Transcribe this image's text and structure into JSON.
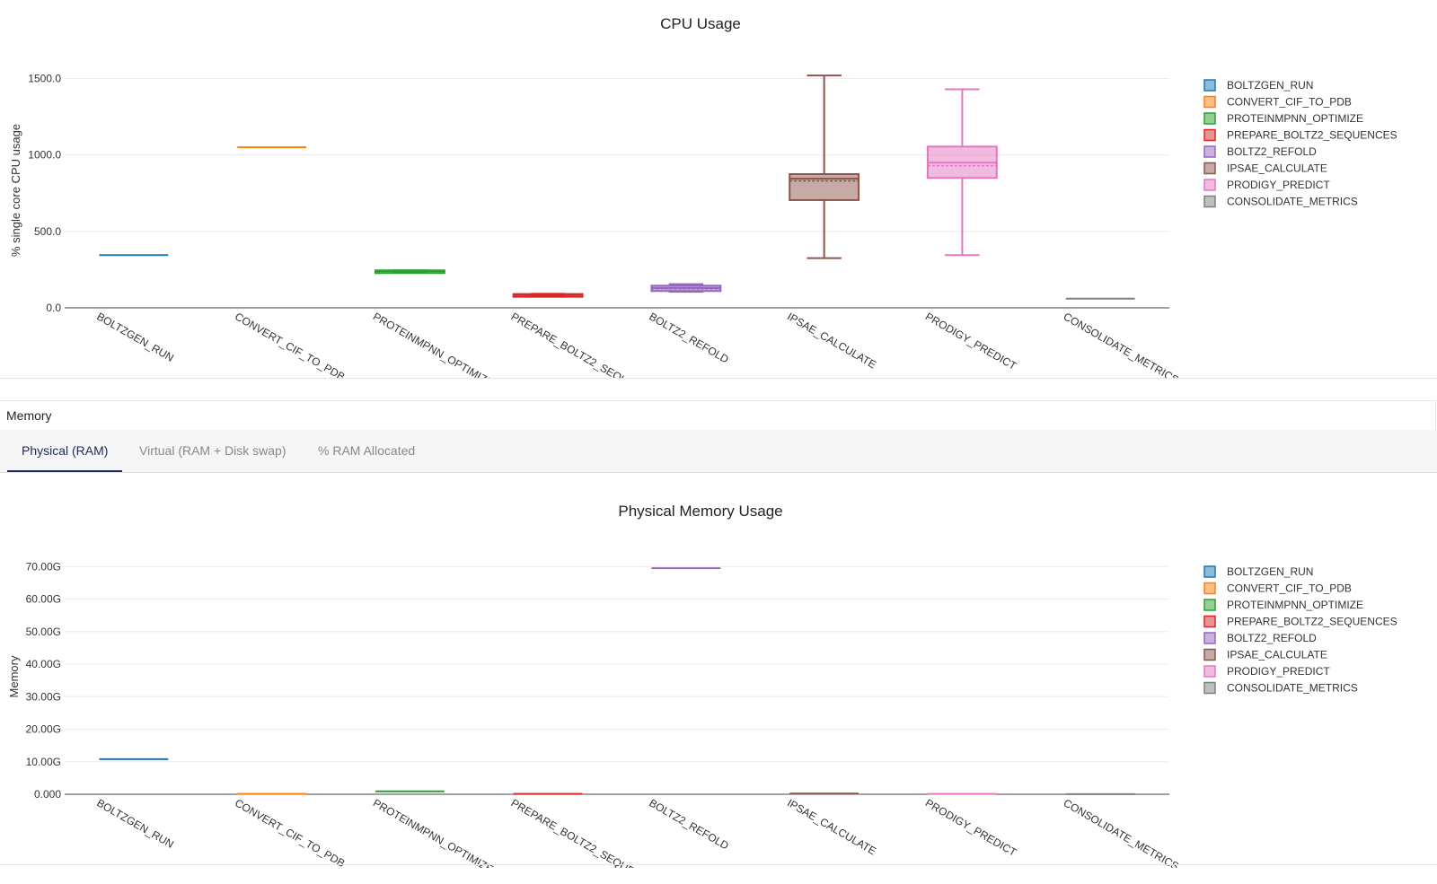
{
  "cpu_section": {
    "title": "CPU Usage"
  },
  "memory_section": {
    "header": "Memory",
    "tabs": [
      {
        "label": "Physical (RAM)",
        "active": true
      },
      {
        "label": "Virtual (RAM + Disk swap)",
        "active": false
      },
      {
        "label": "% RAM Allocated",
        "active": false
      }
    ]
  },
  "chart_data": [
    {
      "type": "box",
      "title": "CPU Usage",
      "ylabel": "% single core CPU usage",
      "ylim": [
        0,
        1650
      ],
      "yticks": [
        0,
        500,
        1000,
        1500
      ],
      "ytick_labels": [
        "0.0",
        "500.0",
        "1000.0",
        "1500.0"
      ],
      "legend_position": "right",
      "grid": true,
      "categories": [
        "BOLTZGEN_RUN",
        "CONVERT_CIF_TO_PDB",
        "PROTEINMPNN_OPTIMIZE",
        "PREPARE_BOLTZ2_SEQUENCES",
        "BOLTZ2_REFOLD",
        "IPSAE_CALCULATE",
        "PRODIGY_PREDICT",
        "CONSOLIDATE_METRICS"
      ],
      "colors": [
        "#1f77b4",
        "#ff7f0e",
        "#2ca02c",
        "#d62728",
        "#9467bd",
        "#8c564b",
        "#e377c2",
        "#7f7f7f"
      ],
      "series": [
        {
          "name": "BOLTZGEN_RUN",
          "min": 345,
          "q1": 345,
          "median": 345,
          "q3": 345,
          "max": 345
        },
        {
          "name": "CONVERT_CIF_TO_PDB",
          "min": 1050,
          "q1": 1050,
          "median": 1050,
          "q3": 1050,
          "max": 1050
        },
        {
          "name": "PROTEINMPNN_OPTIMIZE",
          "min": 236,
          "q1": 236,
          "median": 240,
          "q3": 245,
          "max": 245
        },
        {
          "name": "PREPARE_BOLTZ2_SEQUENCES",
          "min": 78,
          "q1": 78,
          "median": 85,
          "q3": 90,
          "max": 92
        },
        {
          "name": "BOLTZ2_REFOLD",
          "min": 105,
          "q1": 110,
          "median": 130,
          "q3": 145,
          "max": 155,
          "mean": 125
        },
        {
          "name": "IPSAE_CALCULATE",
          "min": 325,
          "q1": 705,
          "median": 845,
          "q3": 875,
          "max": 1520,
          "mean": 830
        },
        {
          "name": "PRODIGY_PREDICT",
          "min": 345,
          "q1": 850,
          "median": 950,
          "q3": 1055,
          "max": 1430,
          "mean": 930
        },
        {
          "name": "CONSOLIDATE_METRICS",
          "min": 60,
          "q1": 60,
          "median": 60,
          "q3": 60,
          "max": 60
        }
      ]
    },
    {
      "type": "box",
      "title": "Physical Memory Usage",
      "ylabel": "Memory",
      "ylim": [
        0,
        72
      ],
      "yticks": [
        0,
        10,
        20,
        30,
        40,
        50,
        60,
        70
      ],
      "ytick_labels": [
        "0.000",
        "10.00G",
        "20.00G",
        "30.00G",
        "40.00G",
        "50.00G",
        "60.00G",
        "70.00G"
      ],
      "unit": "G",
      "legend_position": "right",
      "grid": true,
      "categories": [
        "BOLTZGEN_RUN",
        "CONVERT_CIF_TO_PDB",
        "PROTEINMPNN_OPTIMIZE",
        "PREPARE_BOLTZ2_SEQUENCES",
        "BOLTZ2_REFOLD",
        "IPSAE_CALCULATE",
        "PRODIGY_PREDICT",
        "CONSOLIDATE_METRICS"
      ],
      "colors": [
        "#1f77b4",
        "#ff7f0e",
        "#2ca02c",
        "#d62728",
        "#9467bd",
        "#8c564b",
        "#e377c2",
        "#7f7f7f"
      ],
      "series": [
        {
          "name": "BOLTZGEN_RUN",
          "min": 10.8,
          "q1": 10.8,
          "median": 10.8,
          "q3": 10.8,
          "max": 10.8
        },
        {
          "name": "CONVERT_CIF_TO_PDB",
          "min": 0.1,
          "q1": 0.1,
          "median": 0.1,
          "q3": 0.1,
          "max": 0.1
        },
        {
          "name": "PROTEINMPNN_OPTIMIZE",
          "min": 0.9,
          "q1": 0.9,
          "median": 0.9,
          "q3": 0.9,
          "max": 0.9
        },
        {
          "name": "PREPARE_BOLTZ2_SEQUENCES",
          "min": 0.1,
          "q1": 0.1,
          "median": 0.1,
          "q3": 0.1,
          "max": 0.1
        },
        {
          "name": "BOLTZ2_REFOLD",
          "min": 69.5,
          "q1": 69.5,
          "median": 69.5,
          "q3": 69.5,
          "max": 69.5
        },
        {
          "name": "IPSAE_CALCULATE",
          "min": 0.2,
          "q1": 0.2,
          "median": 0.2,
          "q3": 0.2,
          "max": 0.2
        },
        {
          "name": "PRODIGY_PREDICT",
          "min": 0.1,
          "q1": 0.1,
          "median": 0.1,
          "q3": 0.1,
          "max": 0.1
        },
        {
          "name": "CONSOLIDATE_METRICS",
          "min": 0.05,
          "q1": 0.05,
          "median": 0.05,
          "q3": 0.05,
          "max": 0.05
        }
      ]
    }
  ]
}
